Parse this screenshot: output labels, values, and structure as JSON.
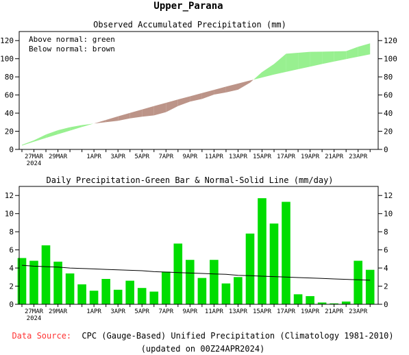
{
  "title": "Upper_Parana",
  "footer": {
    "source_label": "Data Source:",
    "source_text": "CPC (Gauge-Based) Unified Precipitation (Climatology 1981-2010)",
    "updated": "(updated on 00Z24APR2024)"
  },
  "x_dates": [
    "2024-03-26",
    "2024-03-27",
    "2024-03-28",
    "2024-03-29",
    "2024-03-30",
    "2024-03-31",
    "2024-04-01",
    "2024-04-02",
    "2024-04-03",
    "2024-04-04",
    "2024-04-05",
    "2024-04-06",
    "2024-04-07",
    "2024-04-08",
    "2024-04-09",
    "2024-04-10",
    "2024-04-11",
    "2024-04-12",
    "2024-04-13",
    "2024-04-14",
    "2024-04-15",
    "2024-04-16",
    "2024-04-17",
    "2024-04-18",
    "2024-04-19",
    "2024-04-20",
    "2024-04-21",
    "2024-04-22",
    "2024-04-23",
    "2024-04-24"
  ],
  "x_tick_labels": [
    {
      "date": "2024-03-27",
      "label": "27MAR",
      "sub": "2024"
    },
    {
      "date": "2024-03-29",
      "label": "29MAR"
    },
    {
      "date": "2024-04-01",
      "label": "1APR"
    },
    {
      "date": "2024-04-03",
      "label": "3APR"
    },
    {
      "date": "2024-04-05",
      "label": "5APR"
    },
    {
      "date": "2024-04-07",
      "label": "7APR"
    },
    {
      "date": "2024-04-09",
      "label": "9APR"
    },
    {
      "date": "2024-04-11",
      "label": "11APR"
    },
    {
      "date": "2024-04-13",
      "label": "13APR"
    },
    {
      "date": "2024-04-15",
      "label": "15APR"
    },
    {
      "date": "2024-04-17",
      "label": "17APR"
    },
    {
      "date": "2024-04-19",
      "label": "19APR"
    },
    {
      "date": "2024-04-21",
      "label": "21APR"
    },
    {
      "date": "2024-04-23",
      "label": "23APR"
    }
  ],
  "colors": {
    "above_normal": "#98f090",
    "below_normal": "#bc9488",
    "bar": "#00dd00",
    "line": "#000000",
    "source_label": "#ff3333",
    "text": "#000000"
  },
  "chart_data": [
    {
      "type": "area",
      "title": "Observed Accumulated Precipitation (mm)",
      "annotations": [
        "Above normal: green",
        "Below normal: brown"
      ],
      "ylim": [
        0,
        130
      ],
      "yticks": [
        0,
        20,
        40,
        60,
        80,
        100,
        120
      ],
      "series": [
        {
          "name": "Observed",
          "values": [
            5,
            10,
            16.5,
            21.2,
            24.5,
            26.8,
            28.5,
            30,
            31.6,
            34.2,
            36.1,
            37.5,
            41.1,
            47.8,
            52.7,
            55.6,
            60.5,
            62.8,
            65.8,
            73.6,
            85.3,
            94.2,
            105.5,
            106.6,
            107.6,
            107.8,
            108.1,
            108.4,
            113.2,
            117
          ]
        },
        {
          "name": "Normal",
          "values": [
            4.2,
            8.5,
            12.6,
            16.7,
            20.7,
            24.7,
            28.6,
            32.5,
            36.4,
            40.2,
            44,
            47.8,
            51.4,
            55.1,
            58.6,
            62.2,
            65.7,
            69.2,
            72.6,
            76,
            79.3,
            82.5,
            85.5,
            88.4,
            91.3,
            94.2,
            97,
            99.6,
            102.2,
            104.8
          ]
        }
      ]
    },
    {
      "type": "bar",
      "title": "Daily Precipitation-Green Bar & Normal-Solid Line (mm/day)",
      "ylim": [
        0,
        13
      ],
      "yticks": [
        0,
        2,
        4,
        6,
        8,
        10,
        12
      ],
      "series": [
        {
          "name": "Daily Precipitation",
          "values": [
            5.1,
            4.8,
            6.5,
            4.7,
            3.4,
            2.2,
            1.5,
            2.8,
            1.6,
            2.6,
            1.8,
            1.4,
            3.6,
            6.7,
            4.9,
            2.9,
            4.9,
            2.3,
            3.0,
            7.8,
            11.7,
            8.9,
            11.3,
            1.1,
            0.9,
            0.2,
            0.1,
            0.3,
            4.8,
            3.8
          ]
        },
        {
          "name": "Normal",
          "values": [
            4.3,
            4.2,
            4.15,
            4.1,
            4.0,
            3.95,
            3.9,
            3.85,
            3.8,
            3.75,
            3.7,
            3.6,
            3.55,
            3.5,
            3.45,
            3.4,
            3.35,
            3.3,
            3.2,
            3.15,
            3.1,
            3.05,
            3.0,
            2.95,
            2.9,
            2.85,
            2.8,
            2.75,
            2.7,
            2.65
          ]
        }
      ]
    }
  ]
}
